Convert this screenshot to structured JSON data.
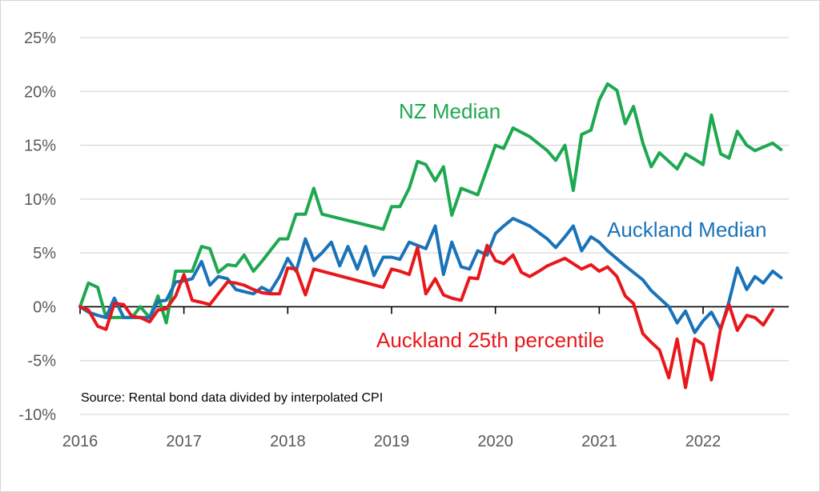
{
  "chart_data": {
    "type": "line",
    "title": "",
    "xlabel": "",
    "ylabel": "",
    "ylim": [
      -10,
      25
    ],
    "xlim": [
      2016,
      2022.9
    ],
    "x_ticks": [
      "2016",
      "2017",
      "2018",
      "2019",
      "2020",
      "2021",
      "2022"
    ],
    "y_ticks": [
      "25%",
      "20%",
      "15%",
      "10%",
      "5%",
      "0%",
      "-5%",
      "-10%"
    ],
    "grid": "horizontal",
    "annotation": "Source: Rental bond data divided by interpolated CPI",
    "series": [
      {
        "name": "NZ Median",
        "color": "#1ea850",
        "points": [
          [
            2016.0,
            0.0
          ],
          [
            2016.08,
            2.2
          ],
          [
            2016.17,
            1.8
          ],
          [
            2016.25,
            -1.0
          ],
          [
            2016.33,
            -1.0
          ],
          [
            2016.42,
            -1.0
          ],
          [
            2016.5,
            -1.0
          ],
          [
            2016.58,
            0.0
          ],
          [
            2016.67,
            -1.0
          ],
          [
            2016.75,
            1.0
          ],
          [
            2016.83,
            -1.5
          ],
          [
            2016.92,
            3.3
          ],
          [
            2017.0,
            3.3
          ],
          [
            2017.08,
            3.3
          ],
          [
            2017.17,
            5.6
          ],
          [
            2017.25,
            5.4
          ],
          [
            2017.33,
            3.2
          ],
          [
            2017.42,
            3.9
          ],
          [
            2017.5,
            3.8
          ],
          [
            2017.58,
            4.8
          ],
          [
            2017.67,
            3.3
          ],
          [
            2017.75,
            4.2
          ],
          [
            2017.83,
            5.2
          ],
          [
            2017.92,
            6.3
          ],
          [
            2018.0,
            6.3
          ],
          [
            2018.08,
            8.6
          ],
          [
            2018.17,
            8.6
          ],
          [
            2018.25,
            11.0
          ],
          [
            2018.33,
            8.6
          ],
          [
            2018.92,
            7.2
          ],
          [
            2019.0,
            9.3
          ],
          [
            2019.08,
            9.3
          ],
          [
            2019.17,
            11.0
          ],
          [
            2019.25,
            13.5
          ],
          [
            2019.33,
            13.2
          ],
          [
            2019.42,
            11.7
          ],
          [
            2019.5,
            13.0
          ],
          [
            2019.58,
            8.5
          ],
          [
            2019.67,
            11.0
          ],
          [
            2019.83,
            10.4
          ],
          [
            2020.0,
            15.0
          ],
          [
            2020.08,
            14.7
          ],
          [
            2020.17,
            16.6
          ],
          [
            2020.33,
            15.8
          ],
          [
            2020.5,
            14.5
          ],
          [
            2020.58,
            13.6
          ],
          [
            2020.67,
            15.0
          ],
          [
            2020.75,
            10.8
          ],
          [
            2020.83,
            16.0
          ],
          [
            2020.92,
            16.4
          ],
          [
            2021.0,
            19.2
          ],
          [
            2021.08,
            20.7
          ],
          [
            2021.17,
            20.1
          ],
          [
            2021.25,
            17.0
          ],
          [
            2021.33,
            18.6
          ],
          [
            2021.42,
            15.2
          ],
          [
            2021.5,
            13.0
          ],
          [
            2021.58,
            14.3
          ],
          [
            2021.75,
            12.8
          ],
          [
            2021.83,
            14.2
          ],
          [
            2021.92,
            13.7
          ],
          [
            2022.0,
            13.2
          ],
          [
            2022.08,
            17.8
          ],
          [
            2022.17,
            14.2
          ],
          [
            2022.25,
            13.8
          ],
          [
            2022.33,
            16.3
          ],
          [
            2022.42,
            15.0
          ],
          [
            2022.5,
            14.5
          ],
          [
            2022.67,
            15.2
          ],
          [
            2022.75,
            14.6
          ]
        ]
      },
      {
        "name": "Auckland Median",
        "color": "#1a73b8",
        "points": [
          [
            2016.0,
            0.0
          ],
          [
            2016.08,
            -0.5
          ],
          [
            2016.17,
            -0.8
          ],
          [
            2016.25,
            -1.0
          ],
          [
            2016.33,
            0.8
          ],
          [
            2016.42,
            -1.0
          ],
          [
            2016.5,
            -1.0
          ],
          [
            2016.58,
            -1.0
          ],
          [
            2016.67,
            -1.0
          ],
          [
            2016.75,
            0.5
          ],
          [
            2016.83,
            0.6
          ],
          [
            2016.92,
            2.3
          ],
          [
            2017.0,
            2.4
          ],
          [
            2017.08,
            2.6
          ],
          [
            2017.17,
            4.2
          ],
          [
            2017.25,
            2.0
          ],
          [
            2017.33,
            2.8
          ],
          [
            2017.42,
            2.6
          ],
          [
            2017.5,
            1.6
          ],
          [
            2017.58,
            1.4
          ],
          [
            2017.67,
            1.2
          ],
          [
            2017.75,
            1.8
          ],
          [
            2017.83,
            1.4
          ],
          [
            2017.92,
            2.8
          ],
          [
            2018.0,
            4.5
          ],
          [
            2018.08,
            3.3
          ],
          [
            2018.17,
            6.3
          ],
          [
            2018.25,
            4.3
          ],
          [
            2018.33,
            5.0
          ],
          [
            2018.42,
            6.0
          ],
          [
            2018.5,
            3.8
          ],
          [
            2018.58,
            5.6
          ],
          [
            2018.67,
            3.5
          ],
          [
            2018.75,
            5.6
          ],
          [
            2018.83,
            2.9
          ],
          [
            2018.92,
            4.6
          ],
          [
            2019.0,
            4.6
          ],
          [
            2019.08,
            4.4
          ],
          [
            2019.17,
            6.0
          ],
          [
            2019.25,
            5.7
          ],
          [
            2019.33,
            5.4
          ],
          [
            2019.42,
            7.5
          ],
          [
            2019.5,
            3.0
          ],
          [
            2019.58,
            6.0
          ],
          [
            2019.67,
            3.7
          ],
          [
            2019.75,
            3.5
          ],
          [
            2019.83,
            5.2
          ],
          [
            2019.92,
            4.8
          ],
          [
            2020.0,
            6.8
          ],
          [
            2020.08,
            7.5
          ],
          [
            2020.17,
            8.2
          ],
          [
            2020.33,
            7.5
          ],
          [
            2020.5,
            6.3
          ],
          [
            2020.58,
            5.5
          ],
          [
            2020.67,
            6.5
          ],
          [
            2020.75,
            7.5
          ],
          [
            2020.83,
            5.2
          ],
          [
            2020.92,
            6.5
          ],
          [
            2021.0,
            6.0
          ],
          [
            2021.08,
            5.2
          ],
          [
            2021.25,
            3.8
          ],
          [
            2021.42,
            2.5
          ],
          [
            2021.5,
            1.5
          ],
          [
            2021.58,
            0.8
          ],
          [
            2021.67,
            0.0
          ],
          [
            2021.75,
            -1.5
          ],
          [
            2021.83,
            -0.4
          ],
          [
            2021.92,
            -2.4
          ],
          [
            2022.0,
            -1.3
          ],
          [
            2022.08,
            -0.5
          ],
          [
            2022.17,
            -2.1
          ],
          [
            2022.25,
            0.5
          ],
          [
            2022.33,
            3.6
          ],
          [
            2022.42,
            1.6
          ],
          [
            2022.5,
            2.8
          ],
          [
            2022.58,
            2.2
          ],
          [
            2022.67,
            3.3
          ],
          [
            2022.75,
            2.7
          ]
        ]
      },
      {
        "name": "Auckland 25th percentile",
        "color": "#e8171b",
        "points": [
          [
            2016.0,
            0.0
          ],
          [
            2016.08,
            -0.3
          ],
          [
            2016.17,
            -1.8
          ],
          [
            2016.25,
            -2.1
          ],
          [
            2016.33,
            0.3
          ],
          [
            2016.42,
            0.2
          ],
          [
            2016.5,
            -0.9
          ],
          [
            2016.58,
            -1.0
          ],
          [
            2016.67,
            -1.4
          ],
          [
            2016.75,
            -0.3
          ],
          [
            2016.83,
            -0.2
          ],
          [
            2016.92,
            1.0
          ],
          [
            2017.0,
            3.0
          ],
          [
            2017.08,
            0.6
          ],
          [
            2017.17,
            0.4
          ],
          [
            2017.25,
            0.2
          ],
          [
            2017.33,
            1.2
          ],
          [
            2017.42,
            2.3
          ],
          [
            2017.5,
            2.2
          ],
          [
            2017.58,
            2.0
          ],
          [
            2017.67,
            1.6
          ],
          [
            2017.75,
            1.3
          ],
          [
            2017.83,
            1.2
          ],
          [
            2017.92,
            1.2
          ],
          [
            2018.0,
            3.6
          ],
          [
            2018.08,
            3.5
          ],
          [
            2018.17,
            1.1
          ],
          [
            2018.25,
            3.5
          ],
          [
            2018.92,
            1.8
          ],
          [
            2019.0,
            3.5
          ],
          [
            2019.08,
            3.3
          ],
          [
            2019.17,
            3.0
          ],
          [
            2019.25,
            5.5
          ],
          [
            2019.33,
            1.2
          ],
          [
            2019.42,
            2.6
          ],
          [
            2019.5,
            1.1
          ],
          [
            2019.58,
            0.8
          ],
          [
            2019.67,
            0.6
          ],
          [
            2019.75,
            2.7
          ],
          [
            2019.83,
            2.6
          ],
          [
            2019.92,
            5.7
          ],
          [
            2020.0,
            4.3
          ],
          [
            2020.08,
            4.0
          ],
          [
            2020.17,
            4.8
          ],
          [
            2020.25,
            3.2
          ],
          [
            2020.33,
            2.8
          ],
          [
            2020.42,
            3.3
          ],
          [
            2020.5,
            3.8
          ],
          [
            2020.67,
            4.5
          ],
          [
            2020.83,
            3.5
          ],
          [
            2020.92,
            3.9
          ],
          [
            2021.0,
            3.3
          ],
          [
            2021.08,
            3.7
          ],
          [
            2021.17,
            2.8
          ],
          [
            2021.25,
            1.0
          ],
          [
            2021.33,
            0.3
          ],
          [
            2021.42,
            -2.5
          ],
          [
            2021.5,
            -3.3
          ],
          [
            2021.58,
            -4.0
          ],
          [
            2021.67,
            -6.6
          ],
          [
            2021.75,
            -3.0
          ],
          [
            2021.83,
            -7.5
          ],
          [
            2021.92,
            -3.0
          ],
          [
            2022.0,
            -3.5
          ],
          [
            2022.08,
            -6.8
          ],
          [
            2022.17,
            -2.0
          ],
          [
            2022.25,
            0.2
          ],
          [
            2022.33,
            -2.2
          ],
          [
            2022.42,
            -0.8
          ],
          [
            2022.5,
            -1.0
          ],
          [
            2022.58,
            -1.7
          ],
          [
            2022.67,
            -0.3
          ]
        ]
      }
    ]
  }
}
